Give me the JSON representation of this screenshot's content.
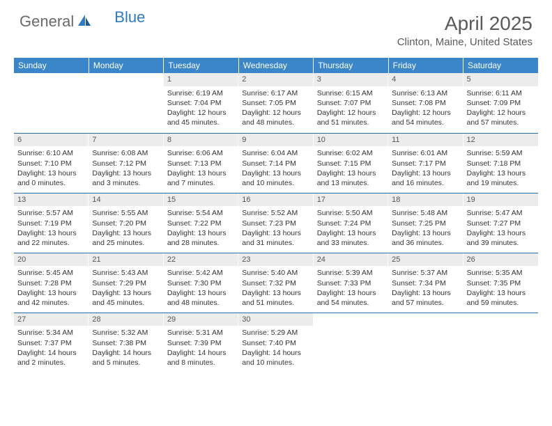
{
  "brand": {
    "part1": "General",
    "part2": "Blue"
  },
  "title": "April 2025",
  "location": "Clinton, Maine, United States",
  "colors": {
    "header_bg": "#3a86c8",
    "header_text": "#ffffff",
    "daynum_bg": "#ececec",
    "row_border": "#2a6aa5",
    "brand_grey": "#6a6a6a",
    "brand_blue": "#2f7ac0"
  },
  "weekdays": [
    "Sunday",
    "Monday",
    "Tuesday",
    "Wednesday",
    "Thursday",
    "Friday",
    "Saturday"
  ],
  "layout": {
    "first_weekday_index": 2,
    "rows": 5,
    "cols": 7,
    "cell_font_size_pt": 8,
    "header_font_size_pt": 9
  },
  "days": {
    "1": {
      "sunrise": "6:19 AM",
      "sunset": "7:04 PM",
      "daylight": "12 hours and 45 minutes."
    },
    "2": {
      "sunrise": "6:17 AM",
      "sunset": "7:05 PM",
      "daylight": "12 hours and 48 minutes."
    },
    "3": {
      "sunrise": "6:15 AM",
      "sunset": "7:07 PM",
      "daylight": "12 hours and 51 minutes."
    },
    "4": {
      "sunrise": "6:13 AM",
      "sunset": "7:08 PM",
      "daylight": "12 hours and 54 minutes."
    },
    "5": {
      "sunrise": "6:11 AM",
      "sunset": "7:09 PM",
      "daylight": "12 hours and 57 minutes."
    },
    "6": {
      "sunrise": "6:10 AM",
      "sunset": "7:10 PM",
      "daylight": "13 hours and 0 minutes."
    },
    "7": {
      "sunrise": "6:08 AM",
      "sunset": "7:12 PM",
      "daylight": "13 hours and 3 minutes."
    },
    "8": {
      "sunrise": "6:06 AM",
      "sunset": "7:13 PM",
      "daylight": "13 hours and 7 minutes."
    },
    "9": {
      "sunrise": "6:04 AM",
      "sunset": "7:14 PM",
      "daylight": "13 hours and 10 minutes."
    },
    "10": {
      "sunrise": "6:02 AM",
      "sunset": "7:15 PM",
      "daylight": "13 hours and 13 minutes."
    },
    "11": {
      "sunrise": "6:01 AM",
      "sunset": "7:17 PM",
      "daylight": "13 hours and 16 minutes."
    },
    "12": {
      "sunrise": "5:59 AM",
      "sunset": "7:18 PM",
      "daylight": "13 hours and 19 minutes."
    },
    "13": {
      "sunrise": "5:57 AM",
      "sunset": "7:19 PM",
      "daylight": "13 hours and 22 minutes."
    },
    "14": {
      "sunrise": "5:55 AM",
      "sunset": "7:20 PM",
      "daylight": "13 hours and 25 minutes."
    },
    "15": {
      "sunrise": "5:54 AM",
      "sunset": "7:22 PM",
      "daylight": "13 hours and 28 minutes."
    },
    "16": {
      "sunrise": "5:52 AM",
      "sunset": "7:23 PM",
      "daylight": "13 hours and 31 minutes."
    },
    "17": {
      "sunrise": "5:50 AM",
      "sunset": "7:24 PM",
      "daylight": "13 hours and 33 minutes."
    },
    "18": {
      "sunrise": "5:48 AM",
      "sunset": "7:25 PM",
      "daylight": "13 hours and 36 minutes."
    },
    "19": {
      "sunrise": "5:47 AM",
      "sunset": "7:27 PM",
      "daylight": "13 hours and 39 minutes."
    },
    "20": {
      "sunrise": "5:45 AM",
      "sunset": "7:28 PM",
      "daylight": "13 hours and 42 minutes."
    },
    "21": {
      "sunrise": "5:43 AM",
      "sunset": "7:29 PM",
      "daylight": "13 hours and 45 minutes."
    },
    "22": {
      "sunrise": "5:42 AM",
      "sunset": "7:30 PM",
      "daylight": "13 hours and 48 minutes."
    },
    "23": {
      "sunrise": "5:40 AM",
      "sunset": "7:32 PM",
      "daylight": "13 hours and 51 minutes."
    },
    "24": {
      "sunrise": "5:39 AM",
      "sunset": "7:33 PM",
      "daylight": "13 hours and 54 minutes."
    },
    "25": {
      "sunrise": "5:37 AM",
      "sunset": "7:34 PM",
      "daylight": "13 hours and 57 minutes."
    },
    "26": {
      "sunrise": "5:35 AM",
      "sunset": "7:35 PM",
      "daylight": "13 hours and 59 minutes."
    },
    "27": {
      "sunrise": "5:34 AM",
      "sunset": "7:37 PM",
      "daylight": "14 hours and 2 minutes."
    },
    "28": {
      "sunrise": "5:32 AM",
      "sunset": "7:38 PM",
      "daylight": "14 hours and 5 minutes."
    },
    "29": {
      "sunrise": "5:31 AM",
      "sunset": "7:39 PM",
      "daylight": "14 hours and 8 minutes."
    },
    "30": {
      "sunrise": "5:29 AM",
      "sunset": "7:40 PM",
      "daylight": "14 hours and 10 minutes."
    }
  },
  "labels": {
    "sunrise": "Sunrise:",
    "sunset": "Sunset:",
    "daylight": "Daylight:"
  }
}
